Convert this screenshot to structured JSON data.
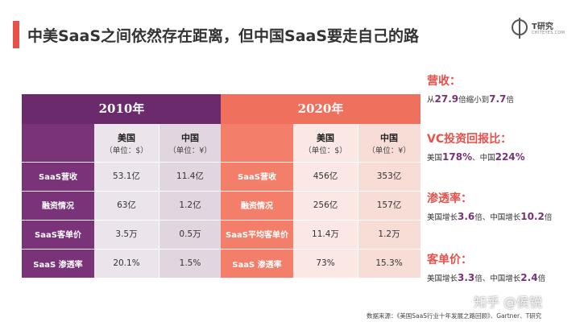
{
  "title": "中美SaaS之间依然存在距离，但中国SaaS要走自己的路",
  "logo": {
    "name": "T研究",
    "sub": "CHITEYES.COM"
  },
  "table_2010": {
    "year": "2010年",
    "us_header": "美国",
    "us_unit": "（单位：$）",
    "cn_header": "中国",
    "cn_unit": "（单位：¥）",
    "rows": [
      {
        "label": "SaaS营收",
        "us": "53.1亿",
        "cn": "11.4亿"
      },
      {
        "label": "融资情况",
        "us": "63亿",
        "cn": "1.2亿"
      },
      {
        "label": "SaaS客单价",
        "us": "3.5万",
        "cn": "0.5万"
      },
      {
        "label": "SaaS 渗透率",
        "us": "20.1%",
        "cn": "1.5%"
      }
    ]
  },
  "table_2020": {
    "year": "2020年",
    "us_header": "美国",
    "us_unit": "（单位：$）",
    "cn_header": "中国",
    "cn_unit": "（单位：¥）",
    "rows": [
      {
        "label": "SaaS营收",
        "us": "456亿",
        "cn": "353亿"
      },
      {
        "label": "融资情况",
        "us": "256亿",
        "cn": "157亿"
      },
      {
        "label": "SaaS平均客单价",
        "us": "11.4万",
        "cn": "1.2万"
      },
      {
        "label": "SaaS 渗透率",
        "us": "73%",
        "cn": "15.3%"
      }
    ]
  },
  "highlights": {
    "revenue": {
      "heading": "营收：",
      "t1": "从",
      "v1": "27.9",
      "t2": "倍缩小到",
      "v2": "7.7",
      "t3": "倍"
    },
    "vc": {
      "heading": "VC投资回报比：",
      "t1": "美国",
      "v1": "178%",
      "t2": "、中国",
      "v2": "224%"
    },
    "penetration": {
      "heading": "渗透率：",
      "t1": "美国增长",
      "v1": "3.6",
      "t2": "倍、中国增长",
      "v2": "10.2",
      "t3": "倍"
    },
    "arpu": {
      "heading": "客单价：",
      "t1": "美国增长",
      "v1": "3.3",
      "t2": "倍、中国增长",
      "v2": "2.4",
      "t3": "倍"
    }
  },
  "source": "数据来源：《美国SaaS行业十年发展之路回顾》、Gartner、T研究",
  "watermark": "知乎 @侯锐",
  "colors": {
    "accent": "#e8504a",
    "purple": "#6b2a6b",
    "coral": "#f0705e"
  }
}
